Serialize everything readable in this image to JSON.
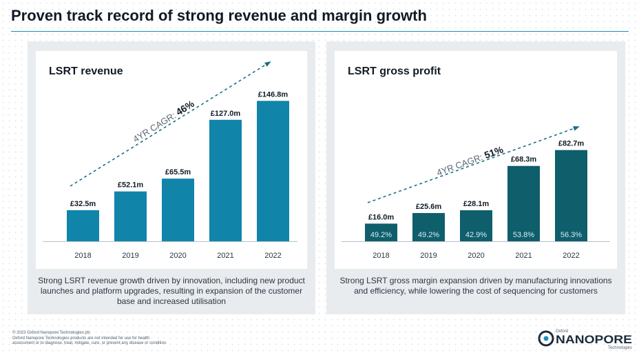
{
  "page": {
    "title": "Proven track record of strong revenue and margin growth",
    "footer_lines": [
      "© 2023 Oxford Nanopore Technologies plc",
      "Oxford Nanopore Technologies products are not intended for use for health",
      "assessment or to diagnose, treat, mitigate, cure, or prevent any disease or condition."
    ],
    "logo": {
      "small_top": "Oxford",
      "brand": "NANOPORE",
      "small_bottom": "Technologies",
      "brand_color": "#1b2b3a",
      "accent_color": "#1a8fb8"
    }
  },
  "chart_data": [
    {
      "type": "bar",
      "title": "LSRT revenue",
      "categories": [
        "2018",
        "2019",
        "2020",
        "2021",
        "2022"
      ],
      "values": [
        32.5,
        52.1,
        65.5,
        127.0,
        146.8
      ],
      "value_labels": [
        "£32.5m",
        "£52.1m",
        "£65.5m",
        "£127.0m",
        "£146.8m"
      ],
      "bar_color": "#1184aa",
      "ylim": [
        0,
        160
      ],
      "trend_annotation": {
        "prefix": "4YR CAGR: ",
        "value": "46%"
      },
      "caption": "Strong LSRT revenue growth driven by innovation, including new product launches and platform upgrades, resulting in expansion of the customer base and increased utilisation"
    },
    {
      "type": "bar",
      "title": "LSRT gross profit",
      "categories": [
        "2018",
        "2019",
        "2020",
        "2021",
        "2022"
      ],
      "values": [
        16.0,
        25.6,
        28.1,
        68.3,
        82.7
      ],
      "value_labels": [
        "£16.0m",
        "£25.6m",
        "£28.1m",
        "£68.3m",
        "£82.7m"
      ],
      "inner_labels": [
        "49.2%",
        "49.2%",
        "42.9%",
        "53.8%",
        "56.3%"
      ],
      "bar_color": "#0e5e6b",
      "ylim": [
        0,
        100
      ],
      "trend_annotation": {
        "prefix": "4YR CAGR: ",
        "value": "51%"
      },
      "caption": "Strong LSRT gross margin expansion driven by manufacturing innovations and efficiency, while lowering the cost of sequencing for customers"
    }
  ]
}
